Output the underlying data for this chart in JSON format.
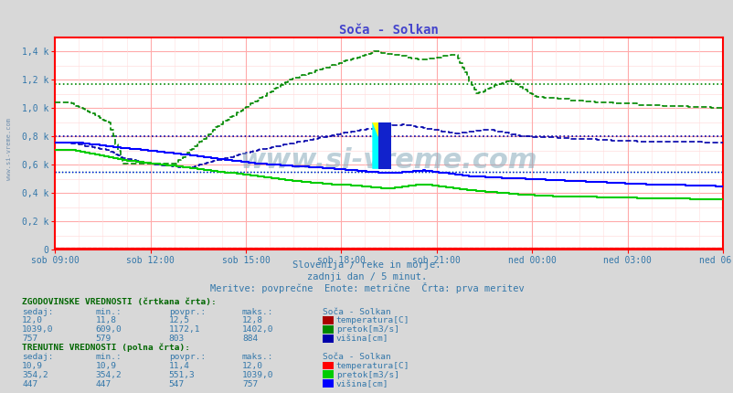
{
  "title": "Soča - Solkan",
  "subtitle1": "Slovenija / reke in morje.",
  "subtitle2": "zadnji dan / 5 minut.",
  "subtitle3": "Meritve: povprečne  Enote: metrične  Črta: prva meritev",
  "xlabel_ticks": [
    "sob 09:00",
    "sob 12:00",
    "sob 15:00",
    "sob 18:00",
    "sob 21:00",
    "ned 00:00",
    "ned 03:00",
    "ned 06:00"
  ],
  "ylabel_ticks": [
    "0",
    "0,2 k",
    "0,4 k",
    "0,6 k",
    "0,8 k",
    "1,0 k",
    "1,2 k",
    "1,4 k"
  ],
  "ylabel_values": [
    0,
    200,
    400,
    600,
    800,
    1000,
    1200,
    1400
  ],
  "ymax": 1500,
  "ymin": 0,
  "bg_color": "#d8d8d8",
  "plot_bg_color": "#ffffff",
  "grid_color_major": "#ffaaaa",
  "grid_color_minor": "#ffdddd",
  "border_color": "#ff0000",
  "watermark_text": "www.si-vreme.com",
  "watermark_color": "#88aabb",
  "title_color": "#4444cc",
  "axis_label_color": "#3377aa",
  "subtitle_color": "#3377aa",
  "table_header_color": "#006600",
  "table_text_color": "#3377aa",
  "hist_pretok_color": "#008800",
  "hist_visina_color": "#0000aa",
  "hist_temp_color": "#aa0000",
  "curr_pretok_color": "#00cc00",
  "curr_visina_color": "#0000ff",
  "curr_temp_color": "#ff0000",
  "avg_pretok_hist": 1172.1,
  "avg_visina_hist": 803,
  "avg_temp_hist": 12.5,
  "avg_pretok_curr": 551.3,
  "avg_visina_curr": 547,
  "avg_temp_curr": 11.4,
  "n_points": 288
}
